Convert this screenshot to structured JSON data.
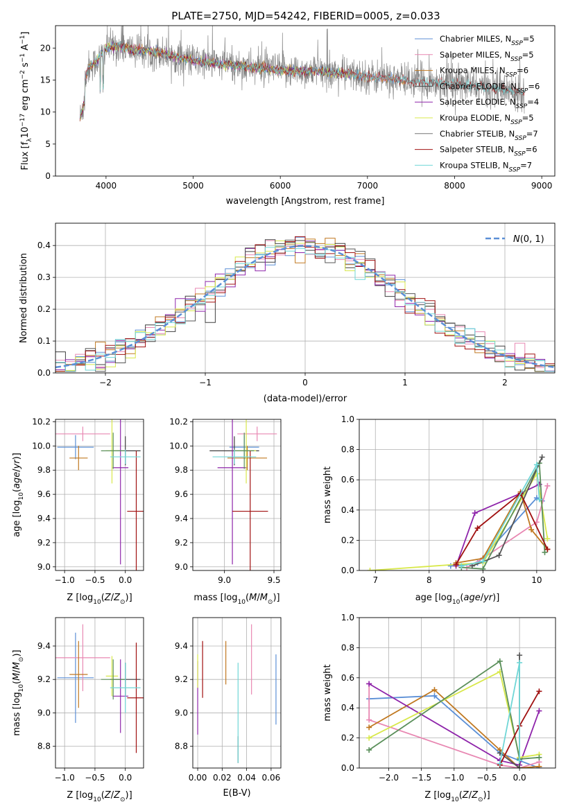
{
  "figure_title": "PLATE=2750, MJD=54242, FIBERID=0005, z=0.033",
  "series_colors": [
    "#5b8fd6",
    "#e887b2",
    "#c07820",
    "#3f3f3f",
    "#8e24aa",
    "#d8e84a",
    "#555555",
    "#a01010",
    "#6fd6d6"
  ],
  "chart_data": [
    {
      "id": "spectrum",
      "type": "line",
      "title": "PLATE=2750, MJD=54242, FIBERID=0005, z=0.033",
      "xlabel": "wavelength [Angstrom, rest frame]",
      "ylabel": "Flux [f_λ 10^-17 erg cm^-2 s^-1 A^-1]",
      "xlim": [
        3420,
        9150
      ],
      "ylim": [
        0,
        23.5
      ],
      "xticks": [
        4000,
        5000,
        6000,
        7000,
        8000,
        9000
      ],
      "yticks": [
        0,
        5,
        10,
        15,
        20
      ],
      "grid": false,
      "legend_position": "top-right",
      "series": [
        {
          "name": "Chabrier MILES, N_SSP=5",
          "color": "#5b8fd6",
          "x_range": [
            3700,
            7430
          ]
        },
        {
          "name": "Salpeter MILES, N_SSP=5",
          "color": "#e887b2",
          "x_range": [
            3700,
            7430
          ]
        },
        {
          "name": "Kroupa MILES, N_SSP=6",
          "color": "#c07820",
          "x_range": [
            3700,
            7430
          ]
        },
        {
          "name": "Chabrier ELODIE, N_SSP=6",
          "color": "#3f3f3f",
          "x_range": [
            3700,
            6800
          ]
        },
        {
          "name": "Salpeter ELODIE, N_SSP=4",
          "color": "#8e24aa",
          "x_range": [
            3700,
            6800
          ]
        },
        {
          "name": "Kroupa ELODIE, N_SSP=5",
          "color": "#d8e84a",
          "x_range": [
            3700,
            6800
          ]
        },
        {
          "name": "Chabrier STELIB, N_SSP=7",
          "color": "#777777",
          "x_range": [
            3700,
            8800
          ]
        },
        {
          "name": "Salpeter STELIB, N_SSP=6",
          "color": "#a01010",
          "x_range": [
            3700,
            8800
          ]
        },
        {
          "name": "Kroupa STELIB, N_SSP=7",
          "color": "#6fd6d6",
          "x_range": [
            3700,
            8800
          ]
        }
      ],
      "continuum_points": [
        [
          3700,
          12
        ],
        [
          3800,
          17
        ],
        [
          3900,
          18
        ],
        [
          4000,
          20
        ],
        [
          4100,
          20.3
        ],
        [
          4300,
          19.8
        ],
        [
          4600,
          19.3
        ],
        [
          5000,
          18
        ],
        [
          5500,
          17.2
        ],
        [
          6000,
          16.5
        ],
        [
          6500,
          16.3
        ],
        [
          7000,
          15.6
        ],
        [
          7500,
          14.8
        ],
        [
          8000,
          14.4
        ],
        [
          8500,
          13.6
        ],
        [
          8800,
          13.2
        ]
      ]
    },
    {
      "id": "residuals",
      "type": "line",
      "xlabel": "(data-model)/error",
      "ylabel": "Normed distribution",
      "xlim": [
        -2.5,
        2.5
      ],
      "ylim": [
        0,
        0.47
      ],
      "xticks": [
        -2,
        -1,
        0,
        1,
        2
      ],
      "yticks": [
        0.0,
        0.1,
        0.2,
        0.3,
        0.4
      ],
      "grid": true,
      "legend_position": "top-right",
      "reference_curve": {
        "name": "N(0,1)",
        "mean": 0,
        "sigma": 1,
        "style": "dashed",
        "color": "#5b8fd6"
      },
      "histogram_bins": 50
    },
    {
      "id": "age_vs_Z",
      "type": "scatter",
      "xlabel": "Z [log10(Z/Z⊙)]",
      "ylabel": "age [log10(age/yr)]",
      "xlim": [
        -1.15,
        0.3
      ],
      "ylim": [
        8.97,
        10.22
      ],
      "xticks": [
        -1.0,
        -0.5,
        0.0
      ],
      "yticks": [
        9.0,
        9.2,
        9.4,
        9.6,
        9.8,
        10.0,
        10.2
      ],
      "grid": true,
      "points": [
        {
          "x": -0.82,
          "y": 9.99,
          "xerr": 0.3,
          "yerr": 0.1,
          "color": "#5b8fd6"
        },
        {
          "x": -0.7,
          "y": 10.1,
          "xerr": 0.45,
          "yerr": 0.06,
          "color": "#e887b2"
        },
        {
          "x": -0.77,
          "y": 9.9,
          "xerr": 0.15,
          "yerr": 0.1,
          "color": "#c07820"
        },
        {
          "x": 0.0,
          "y": 9.96,
          "xerr": 0.25,
          "yerr": 0.12,
          "color": "#3f3f3f"
        },
        {
          "x": -0.08,
          "y": 9.82,
          "xerr": 0.13,
          "yerr": 0.8,
          "color": "#8e24aa"
        },
        {
          "x": -0.22,
          "y": 9.96,
          "xerr": 0.1,
          "yerr": 0.27,
          "color": "#d8e84a"
        },
        {
          "x": -0.2,
          "y": 9.96,
          "xerr": 0.2,
          "yerr": 0.15,
          "color": "#5a8f5a"
        },
        {
          "x": 0.18,
          "y": 9.46,
          "xerr": 0.15,
          "yerr": 0.5,
          "color": "#a01010"
        },
        {
          "x": 0.0,
          "y": 9.91,
          "xerr": 0.25,
          "yerr": 0.06,
          "color": "#6fd6d6"
        }
      ]
    },
    {
      "id": "age_vs_mass",
      "type": "scatter",
      "xlabel": "mass [log10(M/M⊙)]",
      "ylabel": "",
      "xlim": [
        8.68,
        9.57
      ],
      "ylim": [
        8.97,
        10.22
      ],
      "xticks": [
        9.0,
        9.5
      ],
      "yticks": [
        9.0,
        9.2,
        9.4,
        9.6,
        9.8,
        10.0,
        10.2
      ],
      "grid": true,
      "points": [
        {
          "x": 9.2,
          "y": 9.99,
          "xerr": 0.15,
          "yerr": 0.1,
          "color": "#5b8fd6"
        },
        {
          "x": 9.33,
          "y": 10.1,
          "xerr": 0.2,
          "yerr": 0.06,
          "color": "#e887b2"
        },
        {
          "x": 9.23,
          "y": 9.9,
          "xerr": 0.2,
          "yerr": 0.1,
          "color": "#c07820"
        },
        {
          "x": 9.1,
          "y": 9.96,
          "xerr": 0.25,
          "yerr": 0.12,
          "color": "#3f3f3f"
        },
        {
          "x": 9.08,
          "y": 9.82,
          "xerr": 0.15,
          "yerr": 0.8,
          "color": "#8e24aa"
        },
        {
          "x": 9.22,
          "y": 9.96,
          "xerr": 0.1,
          "yerr": 0.27,
          "color": "#d8e84a"
        },
        {
          "x": 9.2,
          "y": 9.96,
          "xerr": 0.1,
          "yerr": 0.15,
          "color": "#5a8f5a"
        },
        {
          "x": 9.26,
          "y": 9.46,
          "xerr": 0.18,
          "yerr": 0.5,
          "color": "#a01010"
        },
        {
          "x": 9.1,
          "y": 9.91,
          "xerr": 0.22,
          "yerr": 0.06,
          "color": "#6fd6d6"
        }
      ]
    },
    {
      "id": "weight_vs_age",
      "type": "line",
      "xlabel": "age [log10(age/yr)]",
      "ylabel": "mass weight",
      "xlim": [
        6.7,
        10.35
      ],
      "ylim": [
        0,
        1.0
      ],
      "xticks": [
        7,
        8,
        9,
        10
      ],
      "yticks": [
        0.0,
        0.2,
        0.4,
        0.6,
        0.8,
        1.0
      ],
      "grid": true,
      "series": [
        {
          "color": "#5b8fd6",
          "x": [
            8.4,
            8.9,
            10.0,
            10.1
          ],
          "y": [
            0.03,
            0.05,
            0.48,
            0.46
          ]
        },
        {
          "color": "#e887b2",
          "x": [
            8.7,
            9.0,
            10.0,
            10.2
          ],
          "y": [
            0.02,
            0.08,
            0.32,
            0.56
          ]
        },
        {
          "color": "#c07820",
          "x": [
            8.5,
            9.0,
            9.7,
            9.9,
            10.2
          ],
          "y": [
            0.05,
            0.08,
            0.52,
            0.27,
            0.14
          ]
        },
        {
          "color": "#8e24aa",
          "x": [
            8.5,
            8.85,
            9.7,
            10.05
          ],
          "y": [
            0.03,
            0.38,
            0.51,
            0.57
          ]
        },
        {
          "color": "#d8e84a",
          "x": [
            6.9,
            8.5,
            9.0,
            10.0,
            10.2
          ],
          "y": [
            0.0,
            0.04,
            0.05,
            0.64,
            0.21
          ]
        },
        {
          "color": "#5a8f5a",
          "x": [
            8.6,
            9.0,
            10.05,
            10.15
          ],
          "y": [
            0.02,
            0.01,
            0.71,
            0.12
          ]
        },
        {
          "color": "#555555",
          "x": [
            8.8,
            9.3,
            10.1
          ],
          "y": [
            0.03,
            0.1,
            0.75
          ]
        },
        {
          "color": "#a01010",
          "x": [
            8.5,
            8.9,
            9.7,
            10.2
          ],
          "y": [
            0.04,
            0.28,
            0.51,
            0.14
          ]
        },
        {
          "color": "#6fd6d6",
          "x": [
            8.6,
            9.0,
            10.0,
            10.05
          ],
          "y": [
            0.03,
            0.06,
            0.7,
            0.47
          ]
        }
      ]
    },
    {
      "id": "mass_vs_Z",
      "type": "scatter",
      "xlabel": "Z [log10(Z/Z⊙)]",
      "ylabel": "mass [log10(M/M⊙)]",
      "xlim": [
        -1.15,
        0.3
      ],
      "ylim": [
        8.67,
        9.57
      ],
      "xticks": [
        -1.0,
        -0.5,
        0.0
      ],
      "yticks": [
        8.8,
        9.0,
        9.2,
        9.4
      ],
      "grid": true,
      "points": [
        {
          "x": -0.82,
          "y": 9.21,
          "xerr": 0.3,
          "yerr": 0.27,
          "color": "#5b8fd6"
        },
        {
          "x": -0.7,
          "y": 9.33,
          "xerr": 0.45,
          "yerr": 0.2,
          "color": "#e887b2"
        },
        {
          "x": -0.77,
          "y": 9.23,
          "xerr": 0.15,
          "yerr": 0.2,
          "color": "#c07820"
        },
        {
          "x": 0.0,
          "y": 9.2,
          "xerr": 0.25,
          "yerr": 0.1,
          "color": "#3f3f3f"
        },
        {
          "x": -0.08,
          "y": 9.1,
          "xerr": 0.13,
          "yerr": 0.22,
          "color": "#8e24aa"
        },
        {
          "x": -0.22,
          "y": 9.22,
          "xerr": 0.1,
          "yerr": 0.12,
          "color": "#d8e84a"
        },
        {
          "x": -0.2,
          "y": 9.2,
          "xerr": 0.2,
          "yerr": 0.12,
          "color": "#5a8f5a"
        },
        {
          "x": 0.18,
          "y": 9.09,
          "xerr": 0.15,
          "yerr": 0.33,
          "color": "#a01010"
        },
        {
          "x": 0.0,
          "y": 9.15,
          "xerr": 0.25,
          "yerr": 0.15,
          "color": "#6fd6d6"
        }
      ]
    },
    {
      "id": "mass_vs_ebv",
      "type": "scatter",
      "xlabel": "E(B-V)",
      "ylabel": "",
      "xlim": [
        -0.004,
        0.068
      ],
      "ylim": [
        8.67,
        9.57
      ],
      "xticks": [
        0.0,
        0.02,
        0.04,
        0.06
      ],
      "yticks": [
        8.8,
        9.0,
        9.2,
        9.4
      ],
      "grid": true,
      "points": [
        {
          "x": 0.064,
          "y": 9.14,
          "xerr": 0,
          "yerr": 0.21,
          "color": "#5b8fd6"
        },
        {
          "x": 0.044,
          "y": 9.32,
          "xerr": 0,
          "yerr": 0.21,
          "color": "#e887b2"
        },
        {
          "x": 0.023,
          "y": 9.3,
          "xerr": 0,
          "yerr": 0.13,
          "color": "#c07820"
        },
        {
          "x": 0.0,
          "y": 9.09,
          "xerr": 0,
          "yerr": 0.22,
          "color": "#8e24aa"
        },
        {
          "x": 0.0,
          "y": 9.25,
          "xerr": 0,
          "yerr": 0.1,
          "color": "#d8e84a"
        },
        {
          "x": 0.033,
          "y": 8.78,
          "xerr": 0,
          "yerr": 0.08,
          "color": "#5a5a5a"
        },
        {
          "x": 0.004,
          "y": 9.26,
          "xerr": 0,
          "yerr": 0.17,
          "color": "#a01010"
        },
        {
          "x": 0.033,
          "y": 9.0,
          "xerr": 0,
          "yerr": 0.3,
          "color": "#6fd6d6"
        }
      ]
    },
    {
      "id": "weight_vs_Z",
      "type": "line",
      "xlabel": "Z [log10(Z/Z⊙)]",
      "ylabel": "mass weight",
      "xlim": [
        -2.45,
        0.55
      ],
      "ylim": [
        0,
        1.0
      ],
      "xticks": [
        -2.0,
        -1.5,
        -1.0,
        -0.5,
        0.0
      ],
      "yticks": [
        0.0,
        0.2,
        0.4,
        0.6,
        0.8,
        1.0
      ],
      "grid": true,
      "series": [
        {
          "color": "#5b8fd6",
          "x": [
            -2.3,
            -1.3,
            -0.3,
            0.0,
            0.3
          ],
          "y": [
            0.46,
            0.48,
            0.1,
            0.05,
            0.0
          ]
        },
        {
          "color": "#e887b2",
          "x": [
            -2.3,
            -2.3,
            -0.3,
            0.0,
            0.3
          ],
          "y": [
            0.56,
            0.32,
            0.02,
            0.0,
            0.04
          ]
        },
        {
          "color": "#c07820",
          "x": [
            -2.3,
            -1.3,
            -0.3,
            0.0,
            0.3
          ],
          "y": [
            0.27,
            0.52,
            0.12,
            0.0,
            0.01
          ]
        },
        {
          "color": "#8e24aa",
          "x": [
            -2.3,
            -0.3,
            0.0,
            0.3
          ],
          "y": [
            0.56,
            0.05,
            0.02,
            0.38
          ]
        },
        {
          "color": "#d8e84a",
          "x": [
            -2.3,
            -0.3,
            0.0,
            0.3
          ],
          "y": [
            0.2,
            0.64,
            0.07,
            0.09
          ]
        },
        {
          "color": "#5a8f5a",
          "x": [
            -2.3,
            -0.3,
            0.0,
            0.3
          ],
          "y": [
            0.12,
            0.71,
            0.06,
            0.07
          ]
        },
        {
          "color": "#555555",
          "x": [
            -0.3,
            0.0,
            0.0
          ],
          "y": [
            0.1,
            0.0,
            0.75
          ]
        },
        {
          "color": "#a01010",
          "x": [
            -0.3,
            0.0,
            0.3
          ],
          "y": [
            0.02,
            0.28,
            0.51
          ]
        },
        {
          "color": "#6fd6d6",
          "x": [
            -0.3,
            0.0,
            0.0
          ],
          "y": [
            0.03,
            0.7,
            0.05
          ]
        }
      ]
    }
  ]
}
